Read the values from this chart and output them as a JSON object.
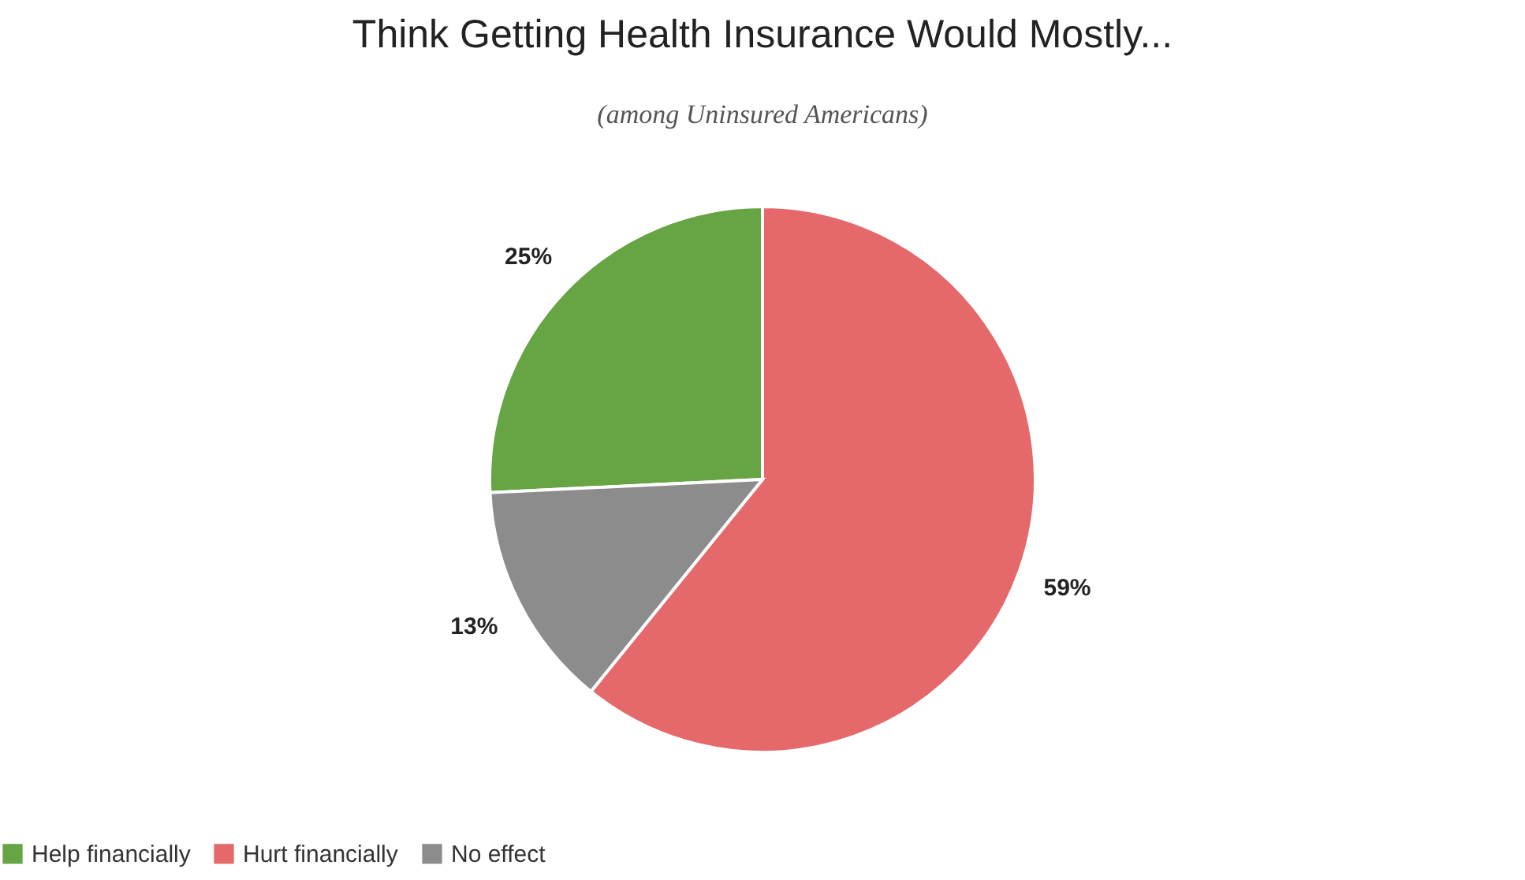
{
  "chart_data": {
    "type": "pie",
    "title": "Think Getting Health Insurance Would Mostly...",
    "subtitle": "(among Uninsured Americans)",
    "categories": [
      "Help financially",
      "Hurt financially",
      "No effect"
    ],
    "values": [
      25,
      59,
      13
    ],
    "colors": [
      "#67a443",
      "#e5696b",
      "#8c8c8c"
    ],
    "value_labels": [
      "25%",
      "59%",
      "13%"
    ],
    "legend": "bottom"
  }
}
